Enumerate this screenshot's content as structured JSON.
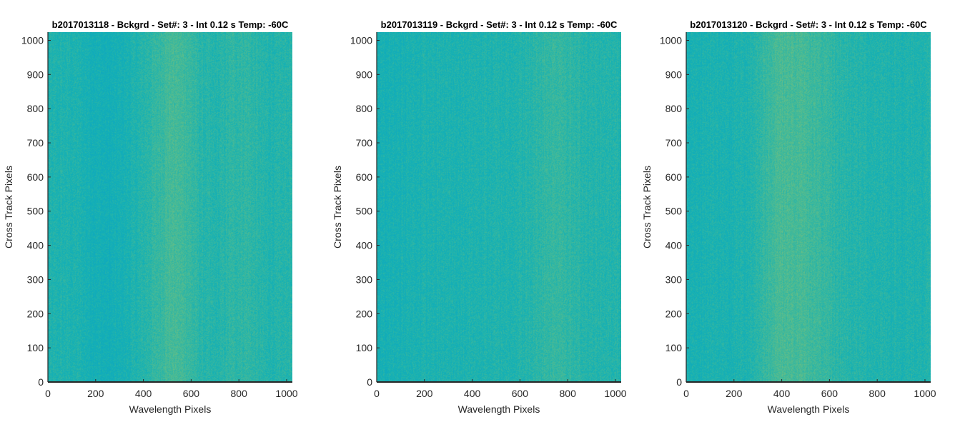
{
  "chart_data": [
    {
      "type": "heatmap",
      "title": "b2017013118 - Bckgrd - Set#: 3 - Int 0.12 s Temp: -60C",
      "xlabel": "Wavelength Pixels",
      "ylabel": "Cross Track Pixels",
      "xlim": [
        0,
        1024
      ],
      "ylim": [
        0,
        1024
      ],
      "xticks": [
        0,
        200,
        400,
        600,
        800,
        1000
      ],
      "yticks": [
        0,
        100,
        200,
        300,
        400,
        500,
        600,
        700,
        800,
        900,
        1000
      ],
      "colormap": "parula",
      "column_profile": {
        "x": [
          0,
          64,
          128,
          192,
          256,
          320,
          384,
          448,
          512,
          576,
          640,
          704,
          768,
          832,
          896,
          960,
          1024
        ],
        "level": [
          0.3,
          0.32,
          0.3,
          0.24,
          0.2,
          0.26,
          0.34,
          0.44,
          0.56,
          0.52,
          0.38,
          0.34,
          0.42,
          0.44,
          0.36,
          0.34,
          0.38
        ]
      }
    },
    {
      "type": "heatmap",
      "title": "b2017013119 - Bckgrd - Set#: 3 - Int 0.12 s Temp: -60C",
      "xlabel": "Wavelength Pixels",
      "ylabel": "Cross Track Pixels",
      "xlim": [
        0,
        1024
      ],
      "ylim": [
        0,
        1024
      ],
      "xticks": [
        0,
        200,
        400,
        600,
        800,
        1000
      ],
      "yticks": [
        0,
        100,
        200,
        300,
        400,
        500,
        600,
        700,
        800,
        900,
        1000
      ],
      "colormap": "parula",
      "column_profile": {
        "x": [
          0,
          64,
          128,
          192,
          256,
          320,
          384,
          448,
          512,
          576,
          640,
          704,
          768,
          832,
          896,
          960,
          1024
        ],
        "level": [
          0.24,
          0.26,
          0.28,
          0.3,
          0.3,
          0.3,
          0.32,
          0.32,
          0.32,
          0.34,
          0.36,
          0.44,
          0.48,
          0.4,
          0.36,
          0.34,
          0.36
        ]
      }
    },
    {
      "type": "heatmap",
      "title": "b2017013120 - Bckgrd - Set#: 3 - Int 0.12 s Temp: -60C",
      "xlabel": "Wavelength Pixels",
      "ylabel": "Cross Track Pixels",
      "xlim": [
        0,
        1024
      ],
      "ylim": [
        0,
        1024
      ],
      "xticks": [
        0,
        200,
        400,
        600,
        800,
        1000
      ],
      "yticks": [
        0,
        100,
        200,
        300,
        400,
        500,
        600,
        700,
        800,
        900,
        1000
      ],
      "colormap": "parula",
      "column_profile": {
        "x": [
          0,
          64,
          128,
          192,
          256,
          320,
          384,
          448,
          512,
          576,
          640,
          704,
          768,
          832,
          896,
          960,
          1024
        ],
        "level": [
          0.26,
          0.28,
          0.3,
          0.3,
          0.32,
          0.44,
          0.58,
          0.56,
          0.54,
          0.46,
          0.4,
          0.36,
          0.34,
          0.34,
          0.32,
          0.32,
          0.34
        ]
      }
    }
  ]
}
